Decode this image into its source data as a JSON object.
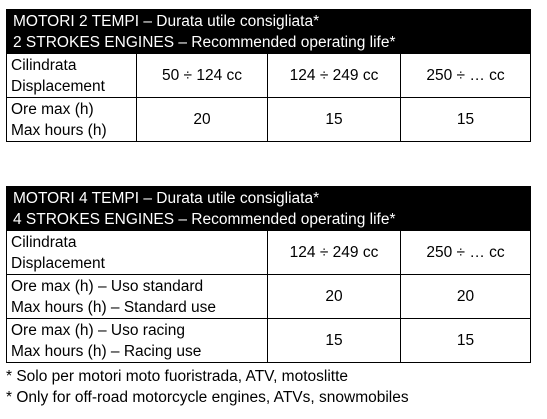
{
  "two_stroke": {
    "title_it": "MOTORI 2 TEMPI – Durata utile consigliata*",
    "title_en": "2 STROKES ENGINES – Recommended operating life*",
    "row_displacement": {
      "label_it": "Cilindrata",
      "label_en": "Displacement",
      "values": [
        "50 ÷ 124 cc",
        "124 ÷ 249 cc",
        "250 ÷ … cc"
      ]
    },
    "row_hours": {
      "label_it": "Ore max (h)",
      "label_en": "Max hours (h)",
      "values": [
        "20",
        "15",
        "15"
      ]
    }
  },
  "four_stroke": {
    "title_it": "MOTORI 4 TEMPI – Durata utile consigliata*",
    "title_en": "4 STROKES ENGINES – Recommended operating life*",
    "row_displacement": {
      "label_it": "Cilindrata",
      "label_en": "Displacement",
      "values": [
        "124 ÷ 249 cc",
        "250 ÷ … cc"
      ]
    },
    "row_standard": {
      "label_it": "Ore max (h) – Uso standard",
      "label_en": "Max hours (h) – Standard use",
      "values": [
        "20",
        "20"
      ]
    },
    "row_racing": {
      "label_it": "Ore max (h) – Uso racing",
      "label_en": "Max hours (h) – Racing use",
      "values": [
        "15",
        "15"
      ]
    }
  },
  "notes": {
    "it": "* Solo per motori moto fuoristrada, ATV, motoslitte",
    "en": "* Only for off-road motorcycle engines, ATVs, snowmobiles"
  }
}
